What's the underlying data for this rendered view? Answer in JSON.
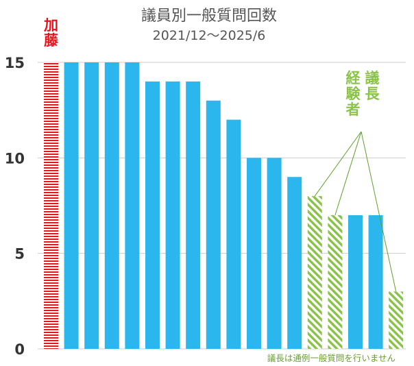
{
  "chart_data": {
    "type": "bar",
    "title": "議員別一般質問回数",
    "subtitle": "2021/12〜2025/6",
    "categories": [
      "加藤",
      "",
      "",
      "",
      "",
      "",
      "",
      "",
      "",
      "",
      "",
      "",
      "",
      "",
      "",
      "",
      "",
      ""
    ],
    "values": [
      15,
      15,
      15,
      15,
      15,
      14,
      14,
      14,
      13,
      12,
      10,
      10,
      9,
      8,
      7,
      7,
      7,
      3
    ],
    "bar_kind": [
      "highlight",
      "normal",
      "normal",
      "normal",
      "normal",
      "normal",
      "normal",
      "normal",
      "normal",
      "normal",
      "normal",
      "normal",
      "normal",
      "speaker",
      "speaker",
      "normal",
      "normal",
      "speaker"
    ],
    "highlight_label": "加藤",
    "speaker_label": "議長経験者",
    "footnote": "議長は通例一般質問を行いません",
    "yticks": [
      0,
      5,
      10,
      15
    ],
    "ylim": [
      0,
      15
    ],
    "grid": true,
    "colors": {
      "normal": "#2cb6ee",
      "highlight": "#e8121b",
      "speaker": "#8bc34a",
      "grid": "#cccccc",
      "text": "#555555"
    }
  }
}
